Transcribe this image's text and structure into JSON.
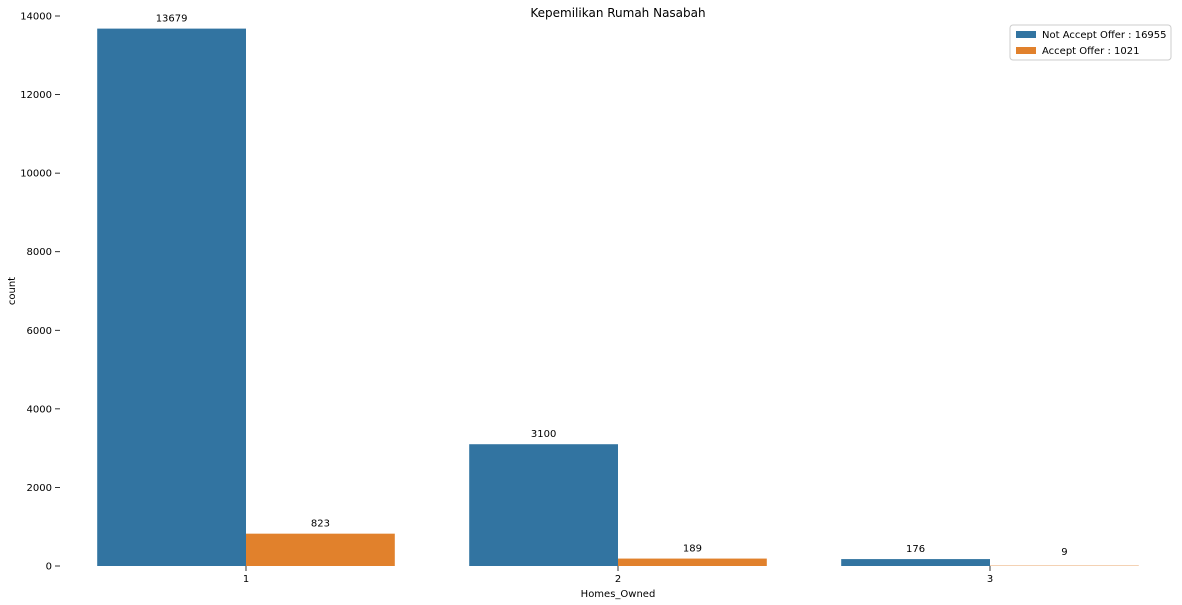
{
  "chart_data": {
    "type": "bar",
    "title": "Kepemilikan Rumah Nasabah",
    "xlabel": "Homes_Owned",
    "ylabel": "count",
    "categories": [
      "1",
      "2",
      "3"
    ],
    "series": [
      {
        "name": "Not Accept Offer : 16955",
        "color": "#3274a1",
        "values": [
          13679,
          3100,
          176
        ],
        "labels": [
          "13679",
          "3100",
          "176"
        ]
      },
      {
        "name": "Accept Offer : 1021",
        "color": "#e1812c",
        "values": [
          823,
          189,
          9
        ],
        "labels": [
          "823",
          "189",
          "9"
        ]
      }
    ],
    "ylim": [
      0,
      14000
    ],
    "yticks": [
      0,
      2000,
      4000,
      6000,
      8000,
      10000,
      12000,
      14000
    ],
    "ytick_labels": [
      "0",
      "2000",
      "4000",
      "6000",
      "8000",
      "10000",
      "12000",
      "14000"
    ],
    "grid": false,
    "legend_position": "top-right"
  }
}
